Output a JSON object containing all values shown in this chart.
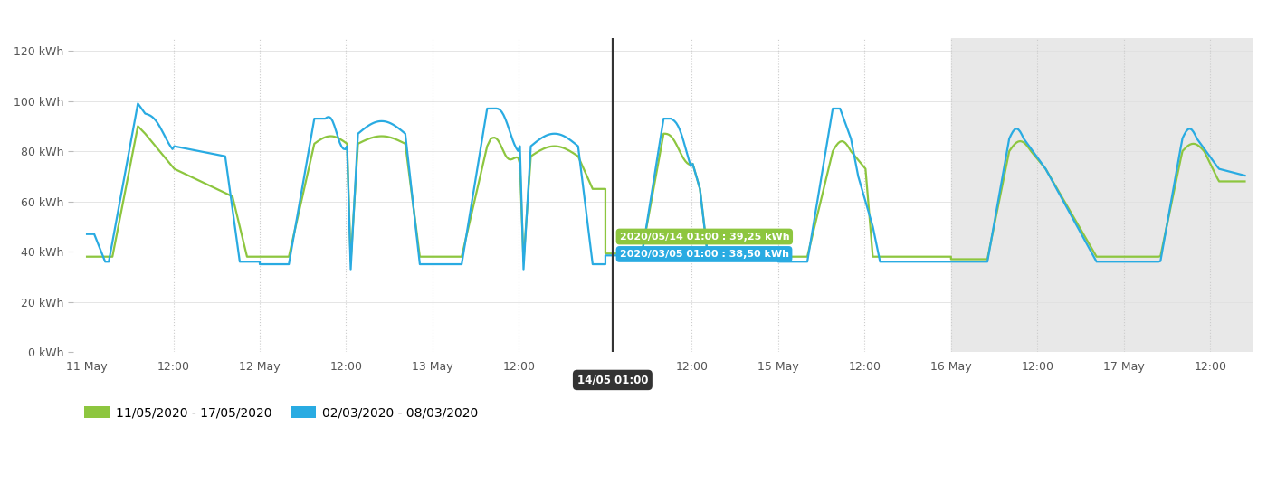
{
  "green_color": "#8dc63f",
  "blue_color": "#29abe2",
  "bg_color": "#ffffff",
  "gray_band_color": "#e8e8e8",
  "top_bar_color": "#aaaaaa",
  "grid_color": "#cccccc",
  "yticks": [
    0,
    20,
    40,
    60,
    80,
    100,
    120
  ],
  "ylim": [
    0,
    125
  ],
  "vline_label": "14/05 01:00",
  "tooltip1_text": "2020/05/14 01:00 : 39,25 kWh",
  "tooltip2_text": "2020/03/05 01:00 : 38,50 kWh",
  "tooltip1_color": "#8dc63f",
  "tooltip2_color": "#29abe2",
  "legend_label1": "11/05/2020 - 17/05/2020",
  "legend_label2": "02/03/2020 - 08/03/2020"
}
